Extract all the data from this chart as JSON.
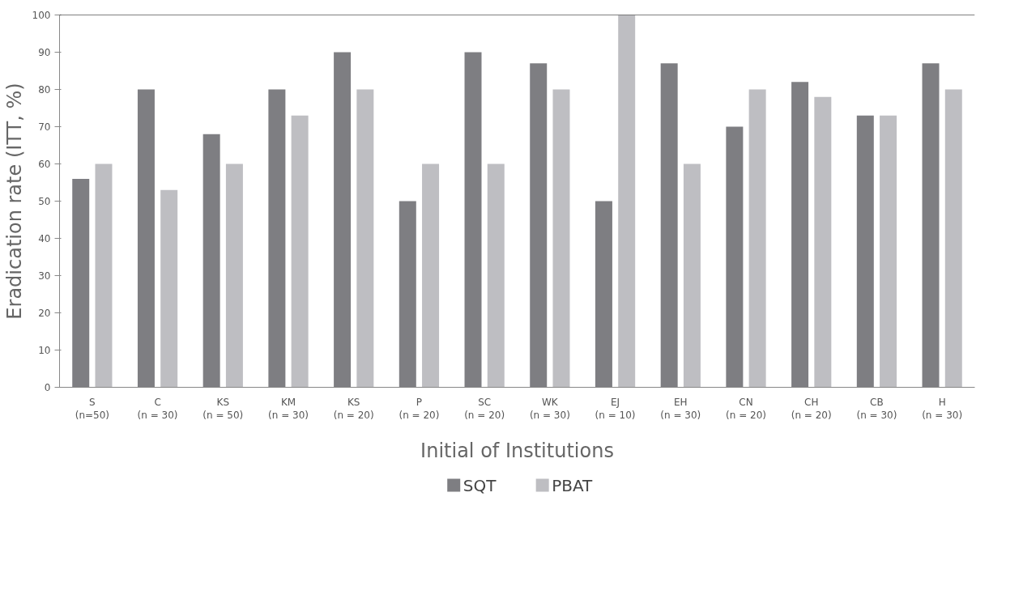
{
  "chart_data": {
    "type": "bar",
    "xlabel": "Initial of Institutions",
    "ylabel": "Eradication rate (ITT, %)",
    "categories": [
      "S\n(n=50)",
      "C\n(n = 30)",
      "KS\n(n = 50)",
      "KM\n(n = 30)",
      "KS\n(n = 20)",
      "P\n(n = 20)",
      "SC\n(n = 20)",
      "WK\n(n = 30)",
      "EJ\n(n = 10)",
      "EH\n(n = 30)",
      "CN\n(n = 20)",
      "CH\n(n = 20)",
      "CB\n(n = 30)",
      "H\n(n = 30)"
    ],
    "series": [
      {
        "name": "SQT",
        "color": "#7e7e82",
        "values": [
          56,
          80,
          68,
          80,
          90,
          50,
          90,
          87,
          50,
          87,
          70,
          82,
          73,
          87
        ]
      },
      {
        "name": "PBAT",
        "color": "#bebec2",
        "values": [
          60,
          53,
          60,
          73,
          80,
          60,
          60,
          80,
          100,
          60,
          80,
          78,
          73,
          80
        ]
      }
    ],
    "ylim": [
      0,
      100
    ],
    "yticks": [
      0,
      10,
      20,
      30,
      40,
      50,
      60,
      70,
      80,
      90,
      100
    ],
    "grid": false,
    "legend": "bottom"
  }
}
